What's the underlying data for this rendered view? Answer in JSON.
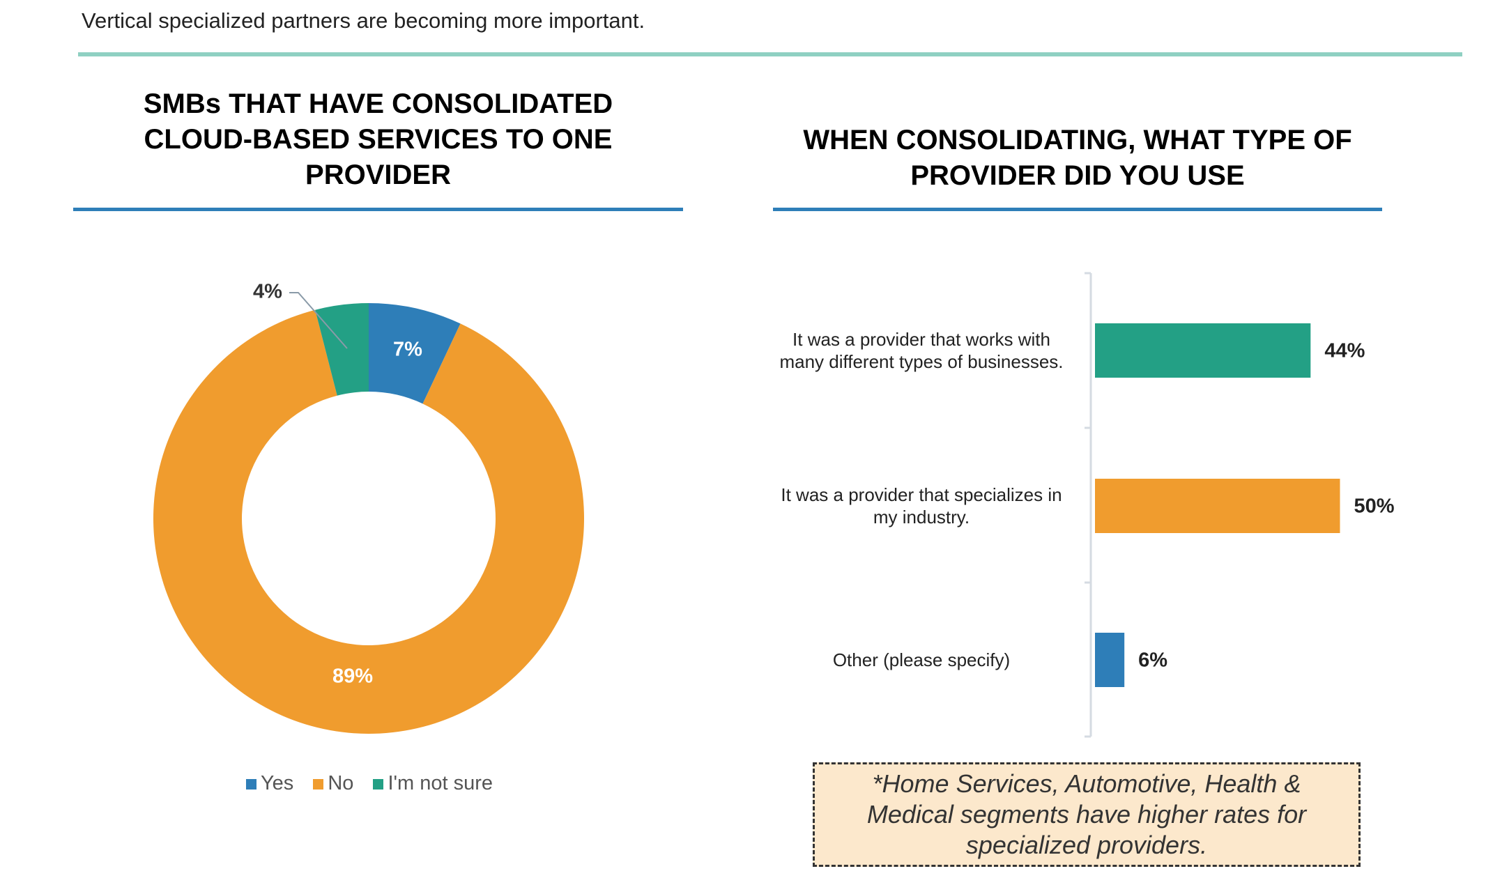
{
  "header": {
    "subtitle": "Vertical specialized partners are becoming more important."
  },
  "colors": {
    "yes": "#2e7eb8",
    "no": "#f09c2e",
    "not_sure": "#23a085",
    "accent_line": "#8fd0c2",
    "title_underline": "#2e7eb8",
    "note_fill": "#fce8cc"
  },
  "chart_data": [
    {
      "type": "pie",
      "variant": "donut",
      "title": "SMBs THAT HAVE CONSOLIDATED CLOUD-BASED SERVICES TO ONE PROVIDER",
      "title_lines": [
        "SMBs THAT HAVE CONSOLIDATED",
        "CLOUD-BASED SERVICES TO ONE",
        "PROVIDER"
      ],
      "categories": [
        "Yes",
        "No",
        "I'm not sure"
      ],
      "values": [
        7,
        89,
        4
      ],
      "labels": [
        "7%",
        "89%",
        "4%"
      ],
      "legend_position": "bottom"
    },
    {
      "type": "bar",
      "orientation": "horizontal",
      "title": "WHEN CONSOLIDATING, WHAT TYPE OF PROVIDER DID YOU USE",
      "title_lines": [
        "WHEN CONSOLIDATING, WHAT TYPE OF",
        "PROVIDER DID YOU USE"
      ],
      "categories": [
        "It was a provider that works with many different types of businesses.",
        "It was a provider that specializes in my industry.",
        "Other (please specify)"
      ],
      "values": [
        44,
        50,
        6
      ],
      "labels": [
        "44%",
        "50%",
        "6%"
      ],
      "bar_colors": [
        "#23a085",
        "#f09c2e",
        "#2e7eb8"
      ],
      "grid": false
    }
  ],
  "note": {
    "text": "*Home Services, Automotive, Health & Medical segments have higher rates for specialized providers."
  }
}
